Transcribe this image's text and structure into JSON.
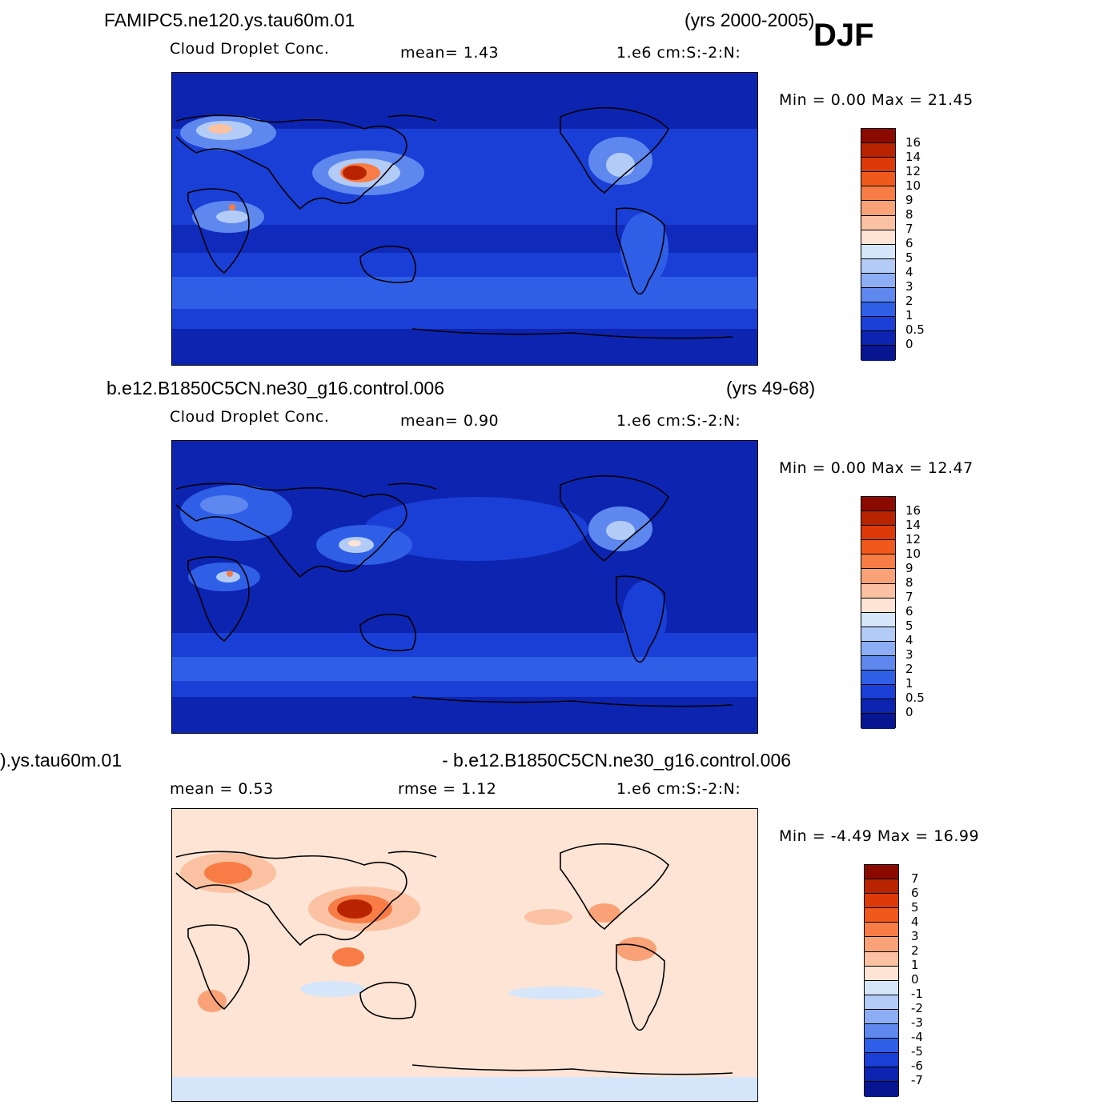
{
  "season": "DJF",
  "panels": [
    {
      "run_title": "FAMIPC5.ne120.ys.tau60m.01",
      "years": "(yrs 2000-2005)",
      "variable": "Cloud Droplet Conc.",
      "stat1": "mean=    1.43",
      "units": "1.e6 cm:S:-2:N:",
      "minmax": "Min =     0.00  Max =    21.45",
      "colorbar_labels": [
        "16",
        "14",
        "12",
        "10",
        "9",
        "8",
        "7",
        "6",
        "5",
        "4",
        "3",
        "2",
        "1",
        "0.5",
        "0"
      ],
      "colorbar_colors": [
        "#8b0a00",
        "#b82300",
        "#dc3a08",
        "#ef5a1c",
        "#f77c45",
        "#f9a277",
        "#fac2a2",
        "#fde4d4",
        "#d6e6fa",
        "#b3ccf7",
        "#8daef4",
        "#5e88ee",
        "#2f5fe6",
        "#1a3fd6",
        "#0d24b0",
        "#071690"
      ]
    },
    {
      "run_title": "b.e12.B1850C5CN.ne30_g16.control.006",
      "years": "(yrs 49-68)",
      "variable": "Cloud Droplet Conc.",
      "stat1": "mean=    0.90",
      "units": "1.e6 cm:S:-2:N:",
      "minmax": "Min =     0.00  Max =    12.47",
      "colorbar_labels": [
        "16",
        "14",
        "12",
        "10",
        "9",
        "8",
        "7",
        "6",
        "5",
        "4",
        "3",
        "2",
        "1",
        "0.5",
        "0"
      ],
      "colorbar_colors": [
        "#8b0a00",
        "#b82300",
        "#dc3a08",
        "#ef5a1c",
        "#f77c45",
        "#f9a277",
        "#fac2a2",
        "#fde4d4",
        "#d6e6fa",
        "#b3ccf7",
        "#8daef4",
        "#5e88ee",
        "#2f5fe6",
        "#1a3fd6",
        "#0d24b0",
        "#071690"
      ]
    },
    {
      "run_title": ").ys.tau60m.01",
      "run_title_right": "- b.e12.B1850C5CN.ne30_g16.control.006",
      "stat1": "mean =    0.53",
      "stat2": "rmse =    1.12",
      "units": "1.e6 cm:S:-2:N:",
      "minmax": "Min =   -4.49  Max =    16.99",
      "colorbar_labels": [
        "7",
        "6",
        "5",
        "4",
        "3",
        "2",
        "1",
        "0",
        "-1",
        "-2",
        "-3",
        "-4",
        "-5",
        "-6",
        "-7"
      ],
      "colorbar_colors": [
        "#8b0a00",
        "#b82300",
        "#dc3a08",
        "#ef5a1c",
        "#f77c45",
        "#f9a277",
        "#fac2a2",
        "#fde4d4",
        "#d6e6fa",
        "#b3ccf7",
        "#8daef4",
        "#5e88ee",
        "#2f5fe6",
        "#1a3fd6",
        "#0d24b0",
        "#071690"
      ]
    }
  ]
}
